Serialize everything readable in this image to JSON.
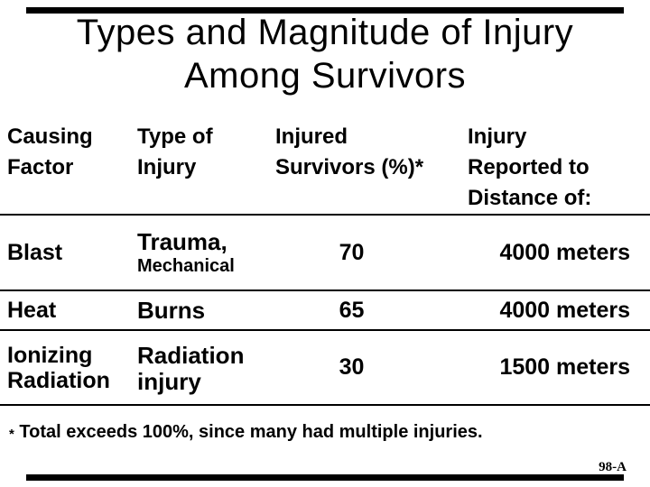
{
  "slide": {
    "title": "Types and Magnitude of Injury\nAmong Survivors",
    "footnote": {
      "star": "*",
      "text": "Total exceeds 100%, since many had multiple injuries."
    },
    "slide_number": "98-A"
  },
  "table": {
    "headers": {
      "causing_factor": "Causing\nFactor",
      "type_of_injury": "Type of\nInjury",
      "injured_survivors": "Injured\nSurvivors (%)*",
      "injury_distance": "Injury\nReported to\nDistance of:"
    },
    "rows": [
      {
        "factor": "Blast",
        "injury_primary": "Trauma,",
        "injury_secondary": "Mechanical",
        "injured_pct": "70",
        "distance": "4000 meters"
      },
      {
        "factor": "Heat",
        "injury_primary": "Burns",
        "injured_pct": "65",
        "distance": "4000 meters"
      },
      {
        "factor": "Ionizing\nRadiation",
        "injury_primary": "Radiation",
        "injury_secondary": "injury",
        "injured_pct": "30",
        "distance": "1500 meters"
      }
    ]
  }
}
